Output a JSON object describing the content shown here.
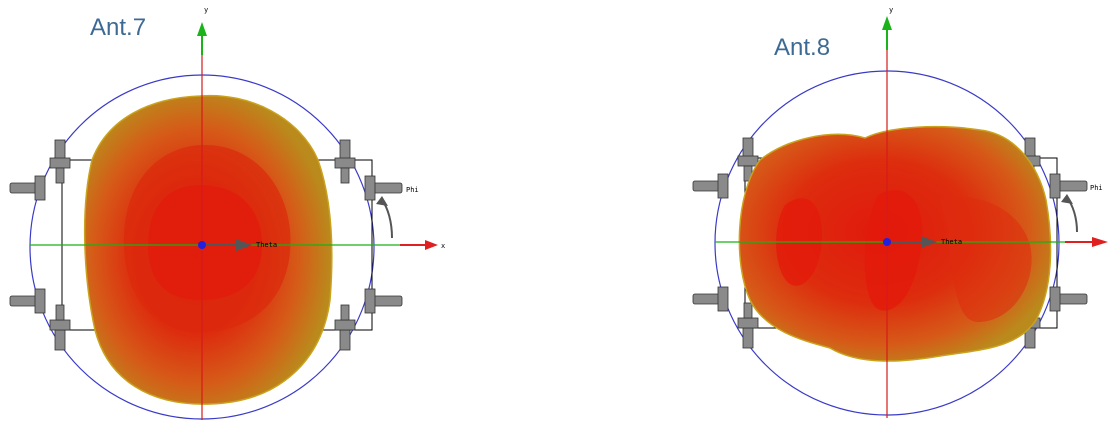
{
  "panels": [
    {
      "title": "Ant.7",
      "axis_labels": {
        "y": "y",
        "x": "x",
        "theta": "Theta",
        "phi": "Phi"
      },
      "pattern_shape": "tall-oval",
      "colors": {
        "outer": "#b98c1a",
        "mid": "#d6581a",
        "core": "#e0200c"
      }
    },
    {
      "title": "Ant.8",
      "axis_labels": {
        "y": "y",
        "x": "",
        "theta": "Theta",
        "phi": "Phi"
      },
      "pattern_shape": "wide-lobed",
      "colors": {
        "outer": "#b98c1a",
        "mid": "#d6581a",
        "core": "#e0200c"
      }
    }
  ],
  "colors": {
    "circle": "#3a3ac8",
    "x_axis": "#16b316",
    "y_axis": "#d61a1a",
    "arrow_x": "#e02020",
    "arrow_y": "#1ab31a",
    "title": "#3d6a94"
  }
}
